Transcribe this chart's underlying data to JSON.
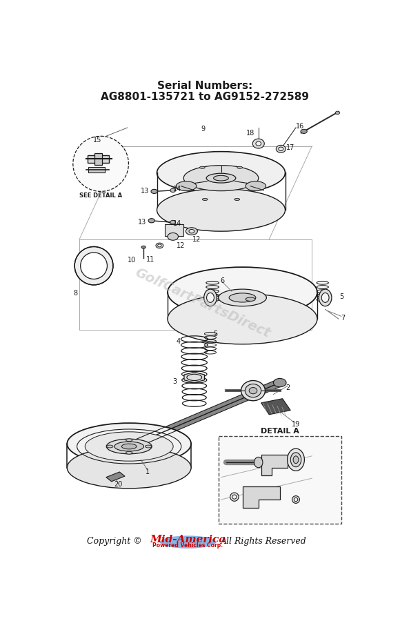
{
  "title_line1": "Serial Numbers:",
  "title_line2": "AG8801-135721 to AG9152-272589",
  "bg_color": "#ffffff",
  "watermark": "GolfCartPartsDirect",
  "lc": "#1a1a1a"
}
